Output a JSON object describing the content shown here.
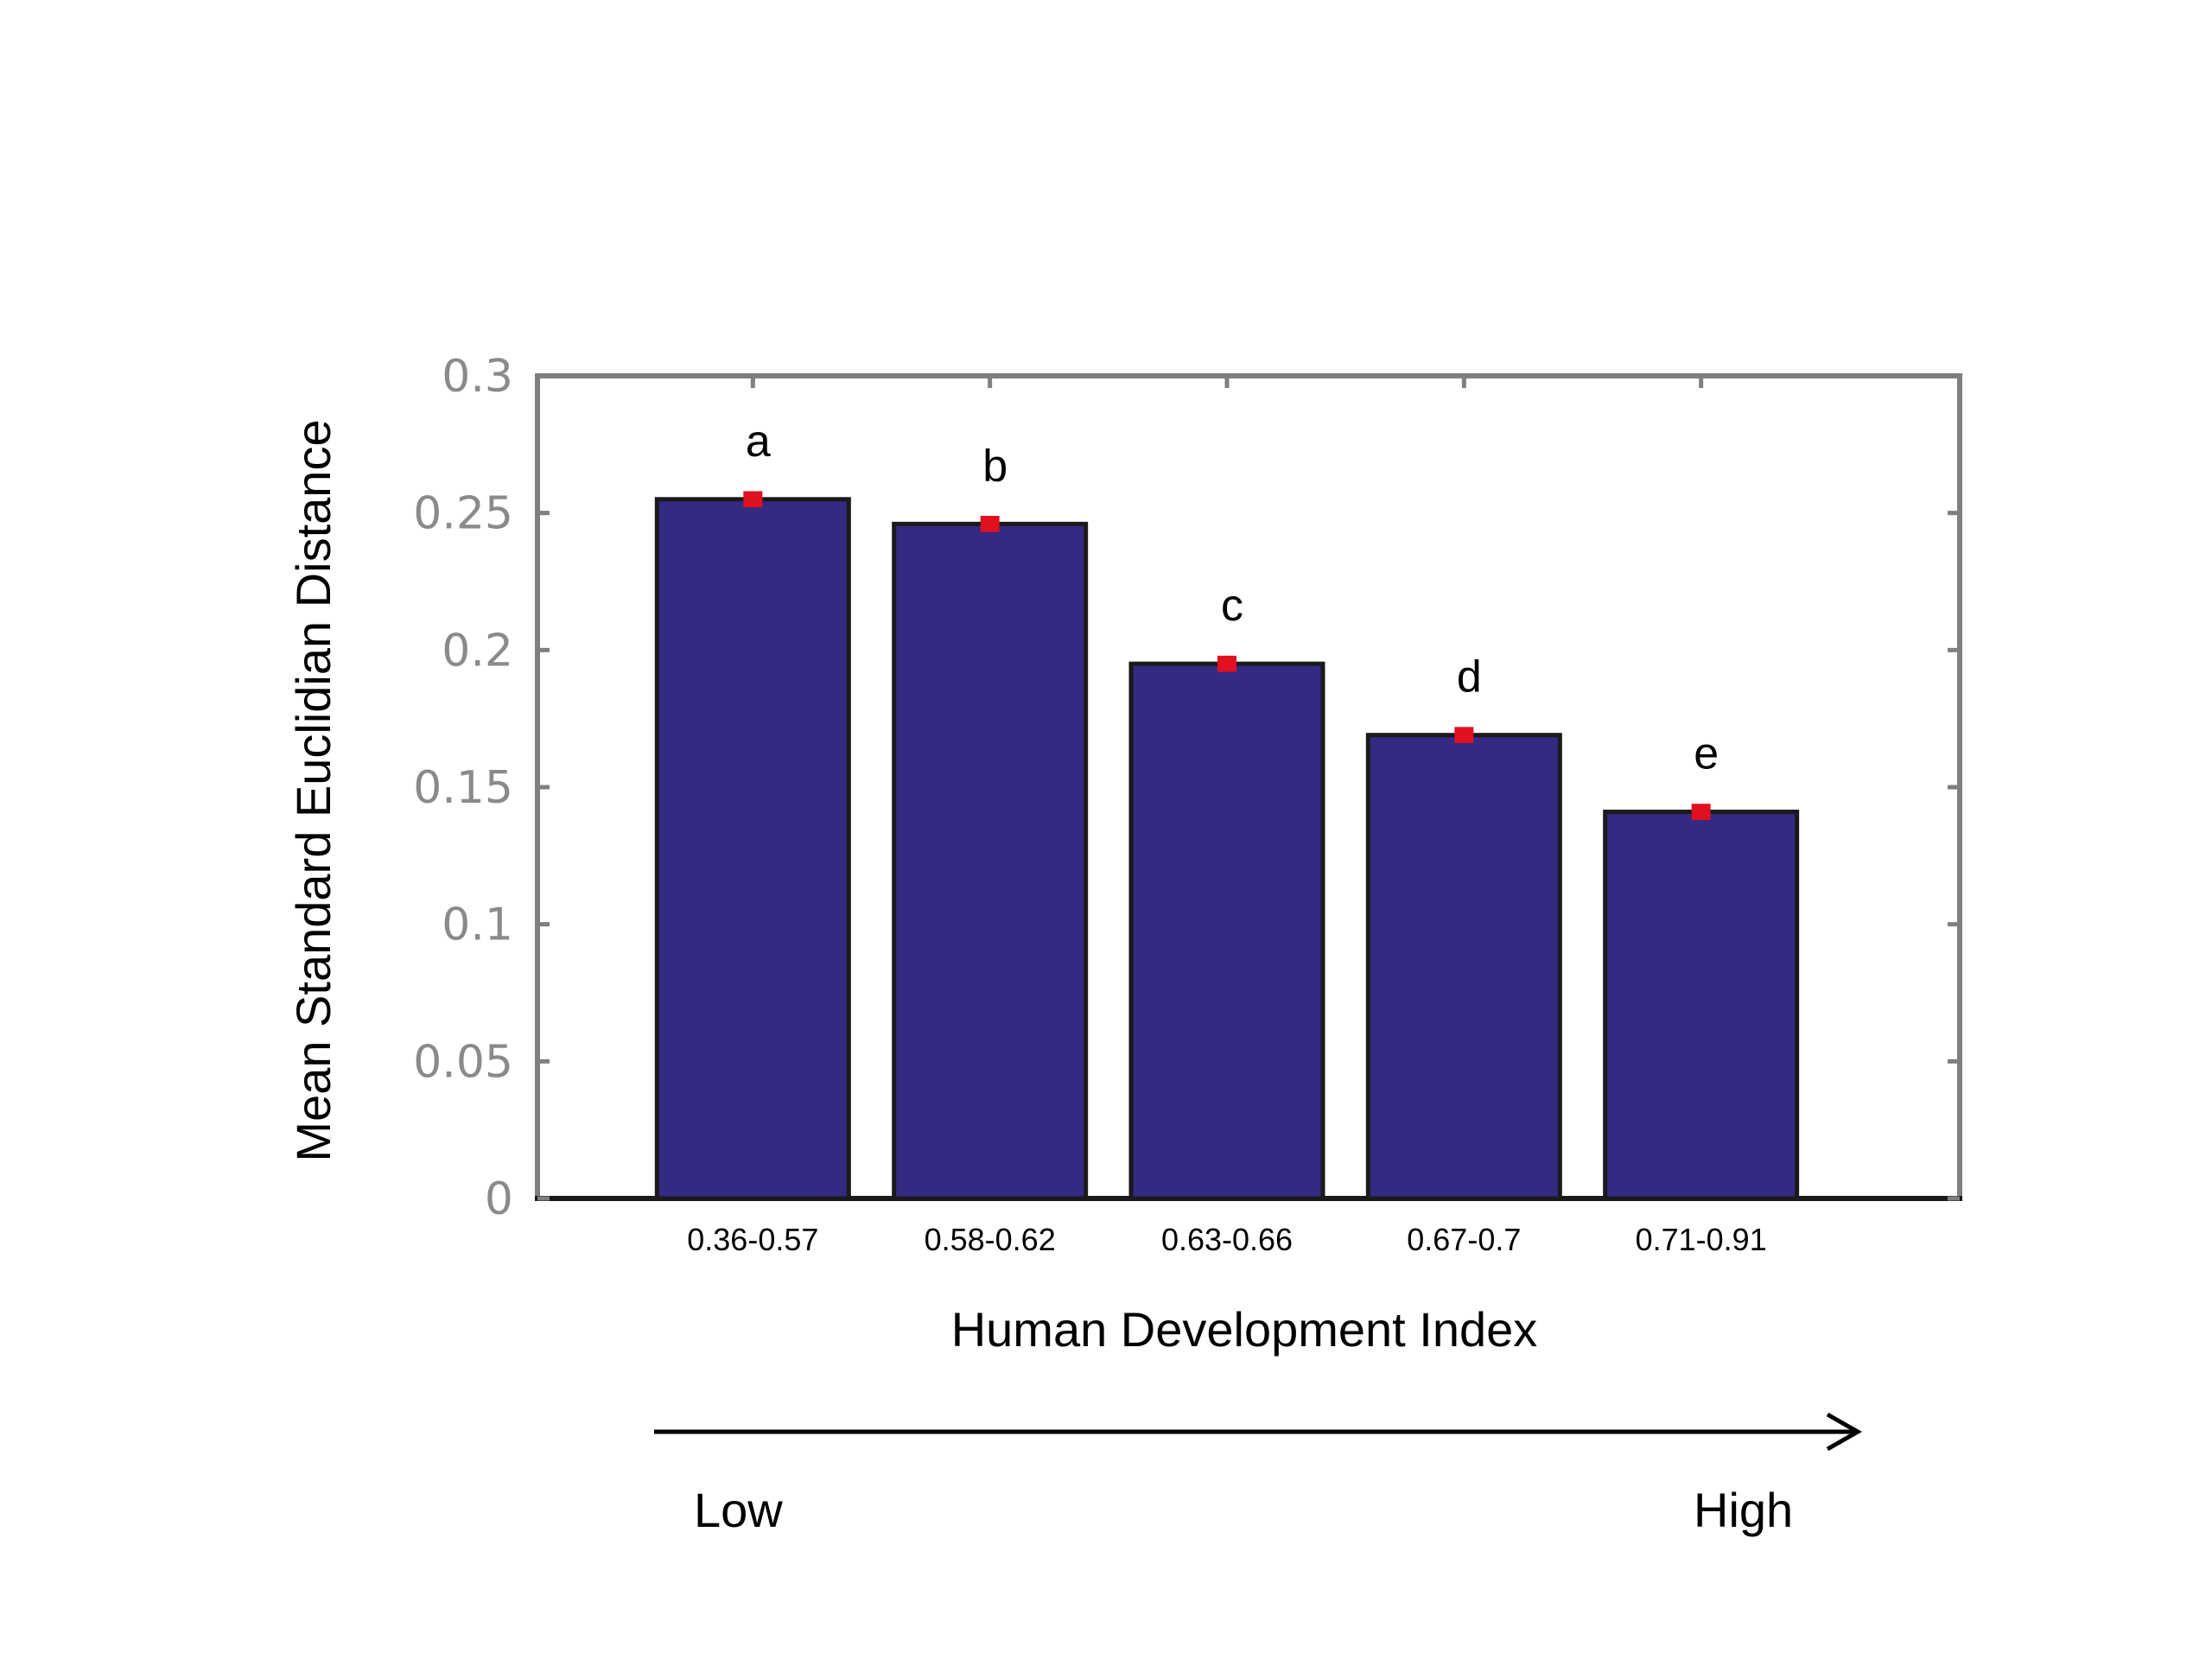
{
  "chart_data": {
    "type": "bar",
    "categories": [
      "0.36-0.57",
      "0.58-0.62",
      "0.63-0.66",
      "0.67-0.7",
      "0.71-0.91"
    ],
    "values": [
      0.255,
      0.246,
      0.195,
      0.169,
      0.141
    ],
    "errors": [
      0.002,
      0.002,
      0.002,
      0.002,
      0.002
    ],
    "significance_labels": [
      "a",
      "b",
      "c",
      "d",
      "e"
    ],
    "xlabel": "Human Development Index",
    "ylabel": "Mean Standard Euclidian Distance",
    "ylim": [
      0,
      0.3
    ],
    "yticks": [
      "0",
      "0.05",
      "0.1",
      "0.15",
      "0.2",
      "0.25",
      "0.3"
    ],
    "grid": false,
    "colors": {
      "bar": "#332a82",
      "bar_edge": "#1a1a1a",
      "error": "#e01020",
      "axis": "#7f7f7f"
    }
  },
  "scale_arrow": {
    "low_label": "Low",
    "high_label": "High"
  }
}
